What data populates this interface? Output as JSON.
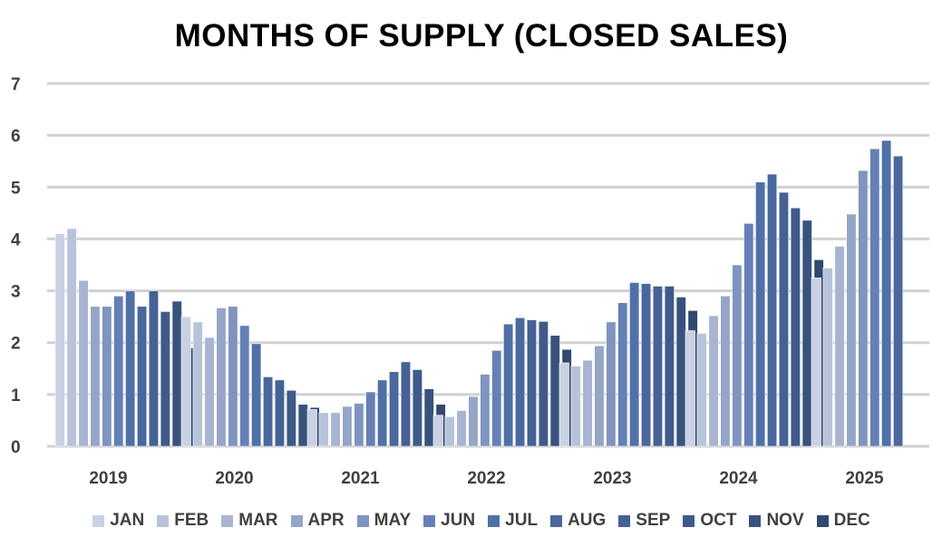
{
  "chart_data": {
    "type": "bar",
    "title": "MONTHS OF SUPPLY (CLOSED SALES)",
    "xlabel": "",
    "ylabel": "",
    "ylim": [
      0,
      7
    ],
    "yticks": [
      "0",
      "1",
      "2",
      "3",
      "4",
      "5",
      "6",
      "7"
    ],
    "grid": true,
    "legend_position": "bottom",
    "categories": [
      "2019",
      "2020",
      "2021",
      "2022",
      "2023",
      "2024",
      "2025"
    ],
    "series": [
      {
        "name": "JAN",
        "color": "#c9d1e3",
        "values": [
          4.1,
          2.5,
          0.71,
          0.6,
          1.61,
          2.23,
          3.25
        ]
      },
      {
        "name": "FEB",
        "color": "#b8c3da",
        "values": [
          4.2,
          2.4,
          0.65,
          0.57,
          1.55,
          2.18,
          3.44
        ]
      },
      {
        "name": "MAR",
        "color": "#a8b4d1",
        "values": [
          3.2,
          2.1,
          0.65,
          0.69,
          1.66,
          2.52,
          3.86
        ]
      },
      {
        "name": "APR",
        "color": "#95a5c8",
        "values": [
          2.7,
          2.67,
          0.77,
          0.96,
          1.94,
          2.9,
          4.48
        ]
      },
      {
        "name": "MAY",
        "color": "#7f94c0",
        "values": [
          2.7,
          2.7,
          0.83,
          1.39,
          2.4,
          3.5,
          5.32
        ]
      },
      {
        "name": "JUN",
        "color": "#6580b6",
        "values": [
          2.9,
          2.33,
          1.05,
          1.85,
          2.77,
          4.3,
          5.74
        ]
      },
      {
        "name": "JUL",
        "color": "#5070a8",
        "values": [
          3.0,
          1.98,
          1.28,
          2.36,
          3.16,
          5.1,
          5.9
        ]
      },
      {
        "name": "AUG",
        "color": "#4a679e",
        "values": [
          2.7,
          1.34,
          1.44,
          2.48,
          3.14,
          5.25,
          5.6
        ]
      },
      {
        "name": "SEP",
        "color": "#456195",
        "values": [
          3.0,
          1.28,
          1.63,
          2.44,
          3.09,
          4.9,
          null
        ]
      },
      {
        "name": "OCT",
        "color": "#3f5a8a",
        "values": [
          2.6,
          1.08,
          1.48,
          2.41,
          3.09,
          4.6,
          null
        ]
      },
      {
        "name": "NOV",
        "color": "#38527e",
        "values": [
          2.8,
          0.81,
          1.11,
          2.14,
          2.88,
          4.36,
          null
        ]
      },
      {
        "name": "DEC",
        "color": "#314870",
        "values": [
          1.9,
          0.75,
          0.81,
          1.87,
          2.62,
          3.6,
          null
        ]
      }
    ]
  }
}
